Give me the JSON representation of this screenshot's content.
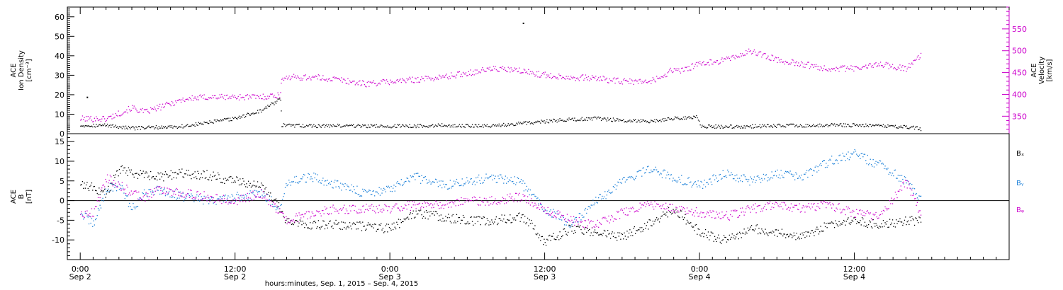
{
  "chart_data": [
    {
      "type": "scatter",
      "panel": "top",
      "left_axis": {
        "label_lines": [
          "ACE",
          "Ion Density",
          "[cm⁻³]"
        ],
        "ylim": [
          0,
          65
        ],
        "ticks": [
          0,
          10,
          20,
          30,
          40,
          50,
          60
        ],
        "tick_labels": [
          "0",
          "10",
          "20",
          "30",
          "40",
          "50",
          "60"
        ]
      },
      "right_axis": {
        "label_lines": [
          "ACE",
          "Velocity",
          "[km/s]"
        ],
        "ylim": [
          310,
          600
        ],
        "ticks": [
          350,
          400,
          450,
          500,
          550
        ],
        "tick_labels": [
          "350",
          "400",
          "450",
          "500",
          "550"
        ],
        "color": "#cc00cc"
      },
      "series": [
        {
          "key": "density",
          "axis": "left",
          "color": "#000000",
          "x_hours": [
            0,
            2,
            4,
            6,
            8,
            10,
            12,
            14,
            15.5,
            15.6,
            18,
            20,
            22,
            24,
            26,
            28,
            30,
            32,
            34,
            36,
            38,
            40,
            42,
            44,
            46,
            47.8,
            48.1,
            50,
            52,
            54,
            56,
            58,
            60,
            62,
            64,
            65.2
          ],
          "y": [
            4.5,
            4.5,
            3,
            3.5,
            4,
            6,
            8,
            12,
            18,
            4.5,
            4.2,
            4.3,
            4.2,
            4,
            4.2,
            4.5,
            4.2,
            4.3,
            5.5,
            6.5,
            7.5,
            8,
            7,
            6.5,
            8,
            9,
            4,
            3.8,
            4,
            4.3,
            4.3,
            4.6,
            4.5,
            4.2,
            3.8,
            2.5
          ]
        },
        {
          "key": "velocity",
          "axis": "right",
          "color": "#cc00cc",
          "x_hours": [
            0,
            2,
            4,
            5,
            6,
            8,
            10,
            12,
            14,
            15.5,
            15.6,
            18,
            20,
            22,
            24,
            26,
            28,
            30,
            32,
            34,
            36,
            38,
            40,
            42,
            44,
            45,
            46,
            46.5,
            47,
            48,
            50,
            52,
            54,
            56,
            58,
            60,
            62,
            64,
            65.2
          ],
          "y": [
            345,
            345,
            370,
            360,
            370,
            390,
            395,
            395,
            395,
            400,
            440,
            440,
            435,
            425,
            430,
            435,
            440,
            450,
            460,
            455,
            445,
            440,
            438,
            430,
            430,
            440,
            460,
            455,
            460,
            470,
            480,
            500,
            480,
            470,
            460,
            460,
            470,
            460,
            490
          ]
        }
      ],
      "annotations": [
        {
          "x_hours": 0.5,
          "y": 19,
          "axis": "left"
        },
        {
          "x_hours": 34.3,
          "y": 57,
          "axis": "left"
        }
      ]
    },
    {
      "type": "scatter",
      "panel": "bottom",
      "left_axis": {
        "label_lines": [
          "ACE",
          "B",
          "[nT]"
        ],
        "ylim": [
          -15,
          17
        ],
        "ticks": [
          -10,
          -5,
          0,
          5,
          10,
          15
        ],
        "tick_labels": [
          "-10",
          "-5",
          "0",
          "5",
          "10",
          "15"
        ]
      },
      "zero_line": true,
      "series": [
        {
          "key": "bx",
          "name": "Bₓ",
          "color": "#000000",
          "x_hours": [
            0,
            2,
            3,
            4,
            6,
            8,
            10,
            12,
            14,
            15.5,
            16,
            18,
            20,
            22,
            24,
            26,
            28,
            30,
            32,
            34,
            35,
            36,
            38,
            40,
            42,
            44,
            46,
            48,
            50,
            52,
            54,
            56,
            58,
            60,
            62,
            64,
            65.2
          ],
          "y": [
            4.5,
            2,
            8,
            7,
            6,
            7,
            6.5,
            5,
            4,
            -2,
            -5.5,
            -6,
            -6,
            -6.5,
            -7,
            -3,
            -4,
            -5,
            -5,
            -4,
            -6,
            -10.5,
            -7,
            -8,
            -9,
            -6,
            -2,
            -8,
            -10,
            -7,
            -8,
            -9,
            -6,
            -5,
            -6,
            -5,
            -5
          ]
        },
        {
          "key": "by",
          "name": "Bᵧ",
          "color": "#1a7fd8",
          "x_hours": [
            0,
            1,
            2,
            3,
            4,
            5,
            6,
            8,
            10,
            12,
            14,
            15.5,
            16,
            18,
            20,
            22,
            24,
            26,
            28,
            30,
            32,
            34,
            36,
            38,
            40,
            42,
            44,
            46,
            48,
            50,
            52,
            54,
            56,
            58,
            60,
            62,
            64,
            65.2
          ],
          "y": [
            -3,
            -6,
            3,
            4,
            -2,
            2,
            3,
            1,
            0,
            1,
            2,
            -2,
            5,
            6,
            4,
            2,
            3,
            6,
            4,
            5,
            6,
            5,
            -2,
            -6,
            0,
            5,
            8,
            6,
            4,
            7,
            5,
            7,
            6,
            10,
            12,
            9,
            5,
            0
          ]
        },
        {
          "key": "bz",
          "name": "Bᵩ",
          "color": "#cc00cc",
          "x_hours": [
            0,
            1,
            2,
            3,
            4,
            5,
            6,
            8,
            10,
            12,
            14,
            15.5,
            16,
            18,
            20,
            22,
            24,
            26,
            28,
            30,
            32,
            34,
            36,
            38,
            40,
            42,
            44,
            46,
            48,
            50,
            52,
            54,
            56,
            58,
            60,
            62,
            64,
            65.2
          ],
          "y": [
            -3,
            -3,
            6,
            4,
            2,
            1,
            3,
            2,
            1,
            0,
            2,
            -3,
            -5,
            -3,
            -2,
            -2,
            -2,
            -1,
            -1,
            0,
            0,
            1,
            -2,
            -5,
            -6,
            -3,
            -1,
            -2,
            -3,
            -4,
            -2,
            -1,
            -2,
            -1,
            -3,
            -4,
            5,
            -4
          ]
        }
      ]
    }
  ],
  "x_axis": {
    "xlim_hours": [
      -1,
      72
    ],
    "ticks_hours": [
      0,
      12,
      24,
      36,
      48,
      60
    ],
    "tick_time_labels": [
      "0:00",
      "12:00",
      "0:00",
      "12:00",
      "0:00",
      "12:00"
    ],
    "tick_date_labels": [
      "Sep 2",
      "Sep 2",
      "Sep 3",
      "Sep 3",
      "Sep 4",
      "Sep 4"
    ],
    "title": "hours:minutes, Sep.  1, 2015 – Sep.  4, 2015"
  },
  "colors": {
    "black": "#000000",
    "magenta": "#cc00cc",
    "blue": "#1a7fd8"
  }
}
